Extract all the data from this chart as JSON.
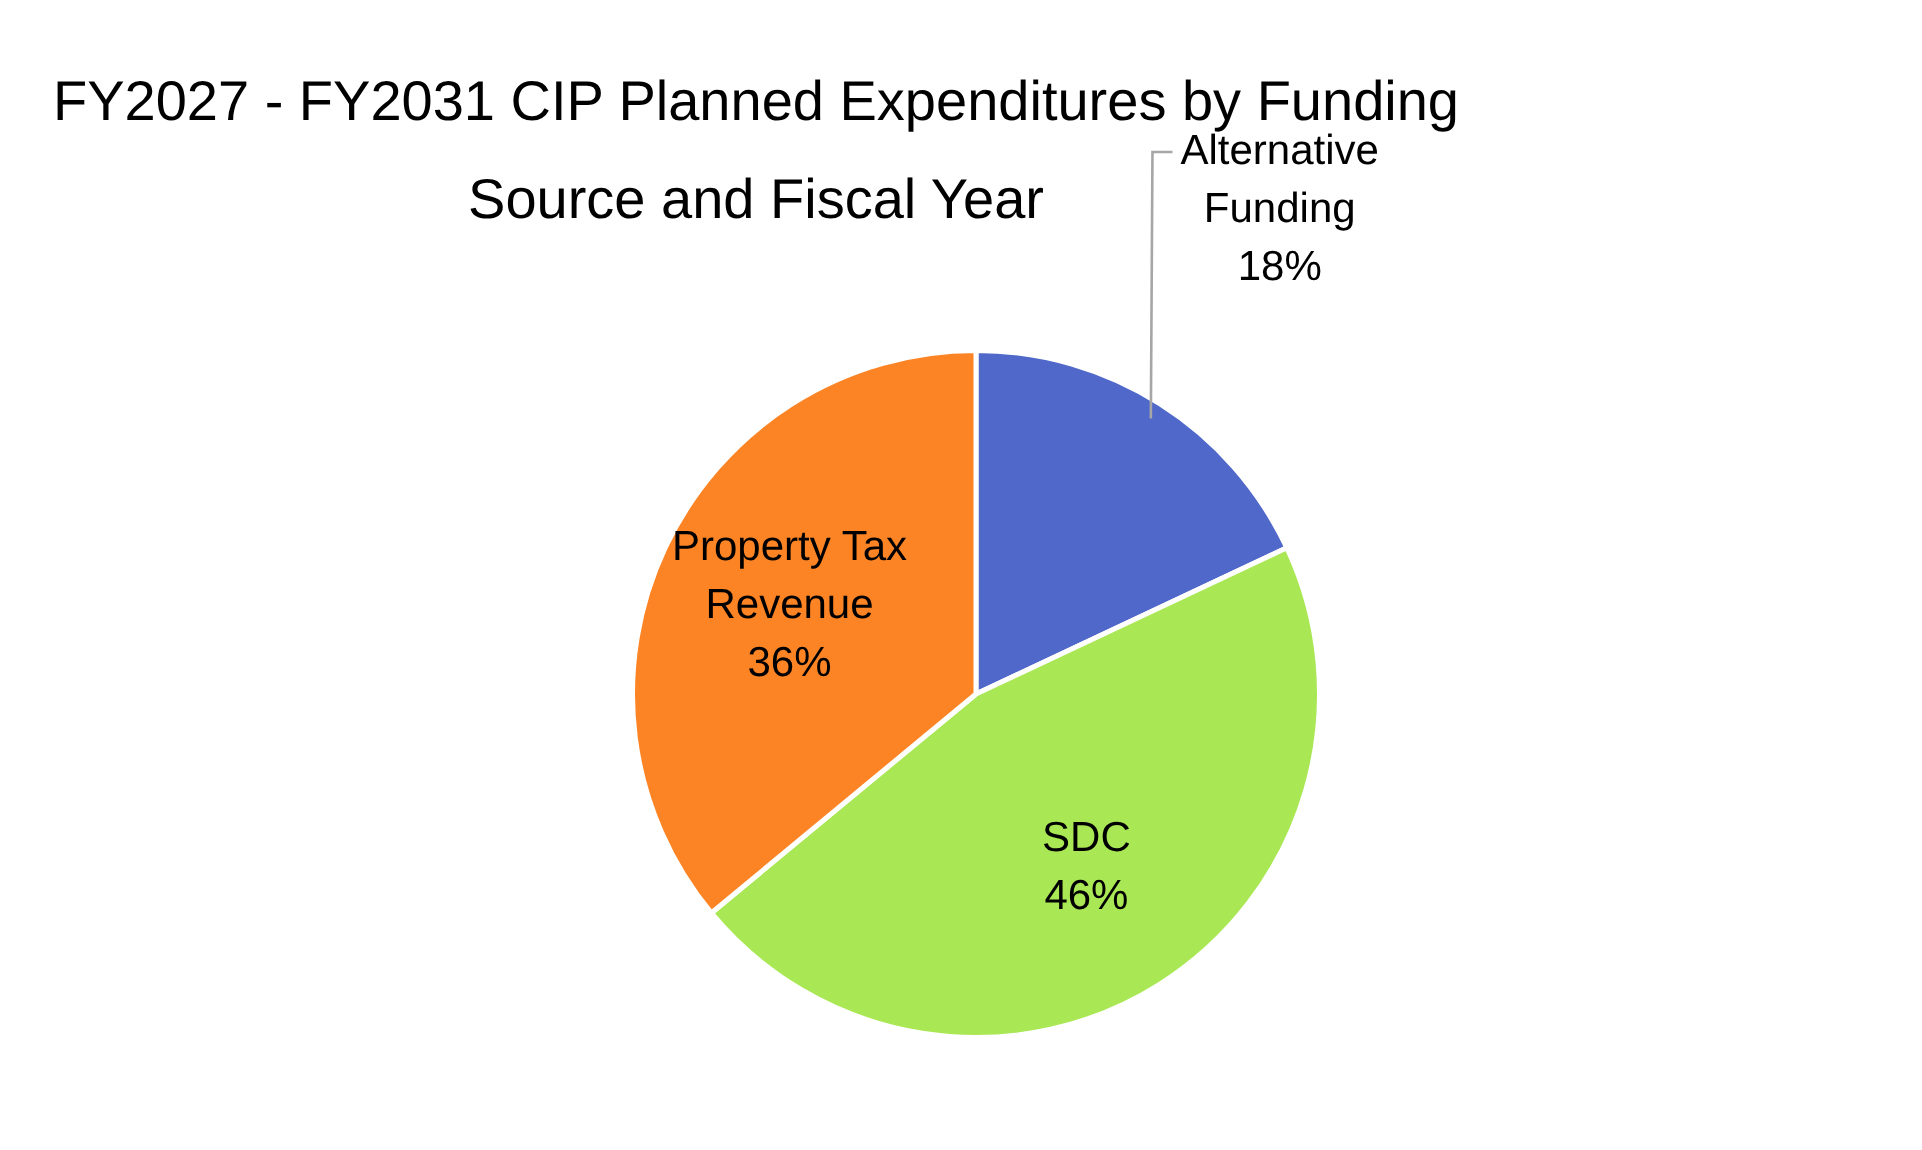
{
  "chart_data": {
    "type": "pie",
    "title": "FY2027 - FY2031 CIP Planned Expenditures by Funding Source and Fiscal Year",
    "categories": [
      "Alternative Funding",
      "SDC",
      "Property Tax Revenue"
    ],
    "values": [
      18,
      46,
      36
    ],
    "colors": [
      "#4f68c9",
      "#a9e854",
      "#fd8424"
    ],
    "value_labels": [
      "18%",
      "46%",
      "36%"
    ],
    "legend": false
  }
}
